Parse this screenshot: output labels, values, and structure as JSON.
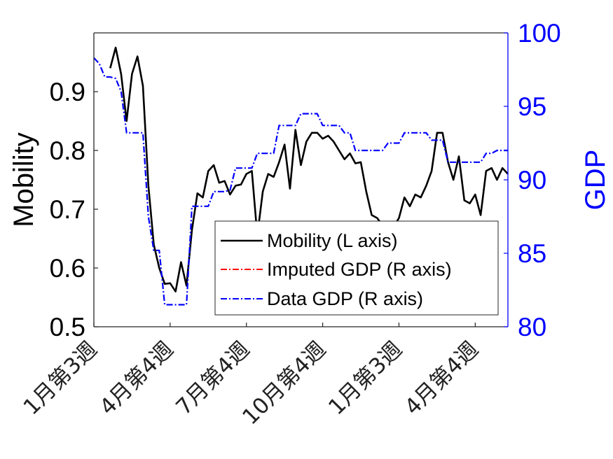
{
  "chart_data": {
    "type": "line",
    "xlabel": "",
    "ylabel_left": "Mobility",
    "ylabel_right": "GDP",
    "ylim_left": [
      0.5,
      1.0
    ],
    "ylim_right": [
      80,
      100
    ],
    "yticks_left": [
      "0.5",
      "0.6",
      "0.7",
      "0.8",
      "0.9"
    ],
    "yticks_right": [
      "80",
      "85",
      "90",
      "95",
      "100"
    ],
    "x_tick_labels": [
      "1月第3週",
      "4月第4週",
      "7月第4週",
      "10月第4週",
      "1月第3週",
      "4月第4週"
    ],
    "x_tick_weeks": [
      0,
      14,
      28,
      42,
      56,
      70
    ],
    "legend_position": "center-right",
    "colors": {
      "mobility": "#000000",
      "imputed": "#ff0000",
      "gdp": "#0000ff",
      "right_axis": "#0000ff"
    },
    "series": [
      {
        "name": "Mobility (L axis)",
        "axis": "left",
        "style": "solid",
        "x": [
          3,
          4,
          5,
          6,
          7,
          8,
          9,
          10,
          11,
          12,
          13,
          14,
          15,
          16,
          17,
          18,
          19,
          20,
          21,
          22,
          23,
          24,
          25,
          26,
          27,
          28,
          29,
          30,
          31,
          32,
          33,
          34,
          35,
          36,
          37,
          38,
          39,
          40,
          41,
          42,
          43,
          44,
          45,
          46,
          47,
          48,
          49,
          50,
          51,
          52,
          53,
          54,
          55,
          56,
          57,
          58,
          59,
          60,
          61,
          62,
          63,
          64,
          65,
          66,
          67,
          68,
          69,
          70,
          71,
          72,
          73,
          74,
          75,
          76
        ],
        "y": [
          0.94,
          0.975,
          0.93,
          0.85,
          0.93,
          0.96,
          0.91,
          0.74,
          0.64,
          0.6,
          0.573,
          0.574,
          0.56,
          0.61,
          0.57,
          0.665,
          0.727,
          0.72,
          0.765,
          0.775,
          0.745,
          0.748,
          0.725,
          0.74,
          0.742,
          0.76,
          0.765,
          0.655,
          0.73,
          0.76,
          0.755,
          0.78,
          0.81,
          0.735,
          0.835,
          0.775,
          0.815,
          0.83,
          0.83,
          0.82,
          0.825,
          0.815,
          0.8,
          0.785,
          0.795,
          0.778,
          0.78,
          0.73,
          0.69,
          0.685,
          0.672,
          0.67,
          0.67,
          0.685,
          0.72,
          0.705,
          0.725,
          0.72,
          0.74,
          0.765,
          0.83,
          0.83,
          0.78,
          0.75,
          0.79,
          0.715,
          0.71,
          0.725,
          0.69,
          0.765,
          0.77,
          0.75,
          0.77,
          0.76
        ]
      },
      {
        "name": "Imputed GDP (R axis)",
        "axis": "right",
        "style": "dash-dot",
        "x": [],
        "y": []
      },
      {
        "name": "Data GDP (R axis)",
        "axis": "right",
        "style": "dash-dot",
        "x": [
          0,
          1,
          2,
          3,
          4,
          5,
          6,
          7,
          8,
          9,
          10,
          11,
          12,
          13,
          14,
          15,
          16,
          17,
          18,
          19,
          20,
          21,
          22,
          23,
          24,
          25,
          26,
          27,
          28,
          29,
          30,
          31,
          32,
          33,
          34,
          35,
          36,
          37,
          38,
          39,
          40,
          41,
          42,
          43,
          44,
          45,
          46,
          47,
          48,
          49,
          50,
          51,
          52,
          53,
          54,
          55,
          56,
          57,
          58,
          59,
          60,
          61,
          62,
          63,
          64,
          65,
          66,
          67,
          68,
          69,
          70,
          71,
          72,
          73,
          74,
          75,
          76
        ],
        "y": [
          98.3,
          97.9,
          97.0,
          97.0,
          96.9,
          96.0,
          93.2,
          93.2,
          93.2,
          93.2,
          87.5,
          85.2,
          85.2,
          81.5,
          81.5,
          81.5,
          81.5,
          81.5,
          88.2,
          88.2,
          88.2,
          88.2,
          89.2,
          89.2,
          89.2,
          89.3,
          90.8,
          90.8,
          90.8,
          90.8,
          91.8,
          91.8,
          91.8,
          91.8,
          93.7,
          93.7,
          93.7,
          93.7,
          94.5,
          94.5,
          94.5,
          94.5,
          93.7,
          93.7,
          93.7,
          93.7,
          93.2,
          93.2,
          92.0,
          92.0,
          92.0,
          92.0,
          92.0,
          92.0,
          92.5,
          92.5,
          92.5,
          93.2,
          93.2,
          93.2,
          93.2,
          93.2,
          92.7,
          92.7,
          92.7,
          91.2,
          91.2,
          91.2,
          91.2,
          91.2,
          91.2,
          91.2,
          91.8,
          91.8,
          92.0,
          92.0,
          92.0
        ]
      }
    ]
  }
}
